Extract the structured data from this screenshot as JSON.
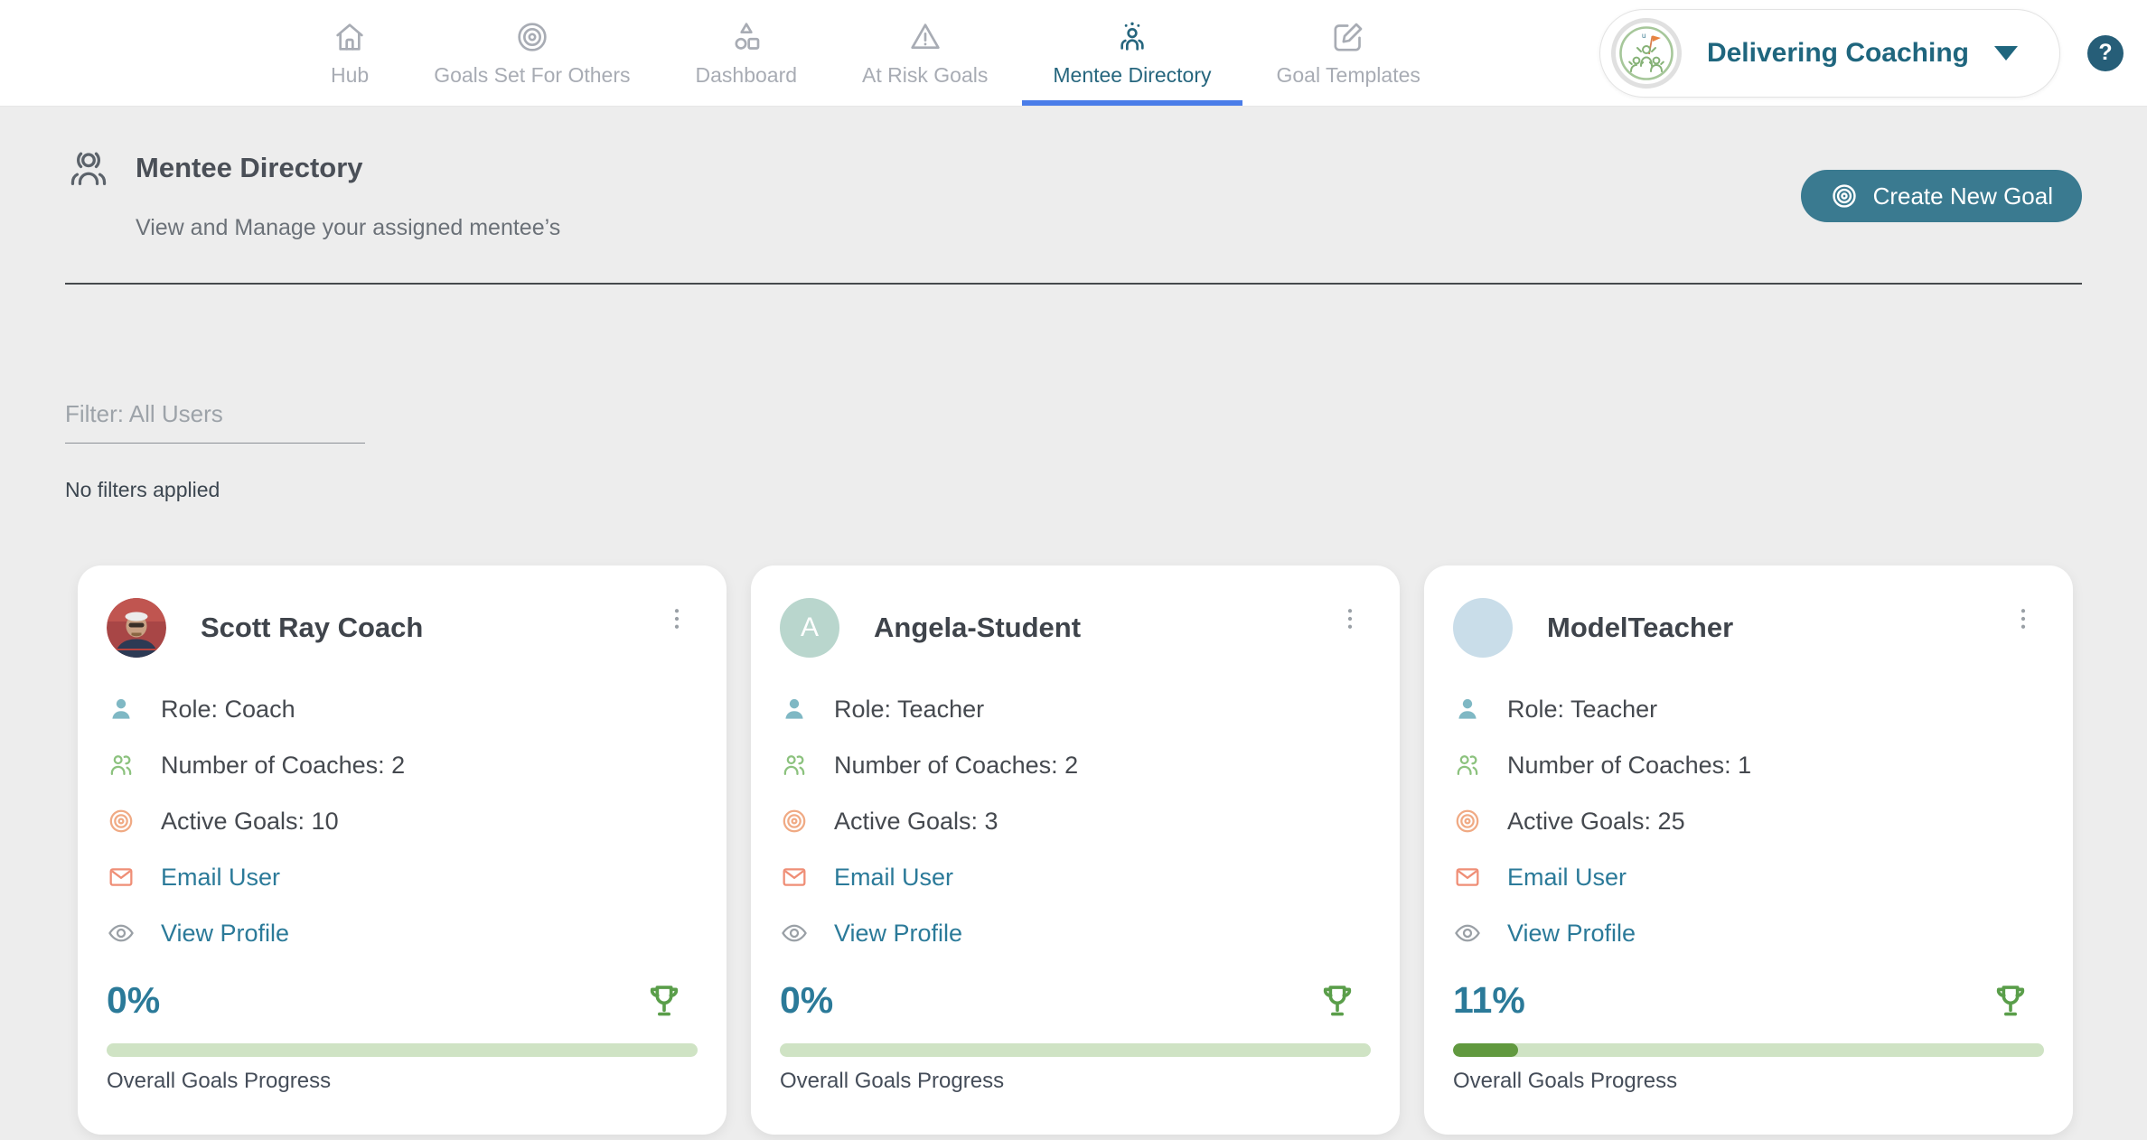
{
  "colors": {
    "accent_teal": "#2b7a99",
    "nav_active_teal": "#26667e",
    "active_tab_underline_blue": "#4a7de9",
    "button_teal": "#3a7a90",
    "help_badge_teal": "#265e78",
    "trophy_green": "#5a9e4a",
    "progress_track_green": "#cfe3c4",
    "progress_fill_green": "#61993f",
    "icon_person_teal": "#7fb8c4",
    "icon_people_green": "#8cc27e",
    "icon_target_orange": "#f0aa84",
    "icon_mail_coral": "#ef8e76",
    "page_background": "#ededed"
  },
  "nav": {
    "tabs": [
      {
        "label": "Hub",
        "icon": "home-icon",
        "active": false
      },
      {
        "label": "Goals Set For Others",
        "icon": "goals-target-icon",
        "active": false
      },
      {
        "label": "Dashboard",
        "icon": "dashboard-shapes-icon",
        "active": false
      },
      {
        "label": "At Risk Goals",
        "icon": "warning-triangle-icon",
        "active": false
      },
      {
        "label": "Mentee Directory",
        "icon": "mentee-group-icon",
        "active": true
      },
      {
        "label": "Goal Templates",
        "icon": "template-edit-icon",
        "active": false
      }
    ],
    "account_label": "Delivering Coaching",
    "help_label": "?"
  },
  "header": {
    "title": "Mentee Directory",
    "subtitle": "View and Manage your assigned mentee’s",
    "create_goal_button": "Create New Goal"
  },
  "filters": {
    "select_label": "Filter: All Users",
    "status_text": "No filters applied"
  },
  "cards": [
    {
      "name": "Scott Ray Coach",
      "avatar": {
        "type": "photo",
        "initial": ""
      },
      "role": "Role: Coach",
      "coaches": "Number of Coaches: 2",
      "active_goals": "Active Goals: 10",
      "email_link": "Email User",
      "profile_link": "View Profile",
      "progress_percent_label": "0%",
      "progress_percent": 0,
      "progress_caption": "Overall Goals Progress"
    },
    {
      "name": "Angela-Student",
      "avatar": {
        "type": "initial",
        "initial": "A",
        "bg": "#b9d6cd"
      },
      "role": "Role: Teacher",
      "coaches": "Number of Coaches: 2",
      "active_goals": "Active Goals: 3",
      "email_link": "Email User",
      "profile_link": "View Profile",
      "progress_percent_label": "0%",
      "progress_percent": 0,
      "progress_caption": "Overall Goals Progress"
    },
    {
      "name": "ModelTeacher",
      "avatar": {
        "type": "blank",
        "initial": "",
        "bg": "#c9dde9"
      },
      "role": "Role: Teacher",
      "coaches": "Number of Coaches: 1",
      "active_goals": "Active Goals: 25",
      "email_link": "Email User",
      "profile_link": "View Profile",
      "progress_percent_label": "11%",
      "progress_percent": 11,
      "progress_caption": "Overall Goals Progress"
    }
  ]
}
